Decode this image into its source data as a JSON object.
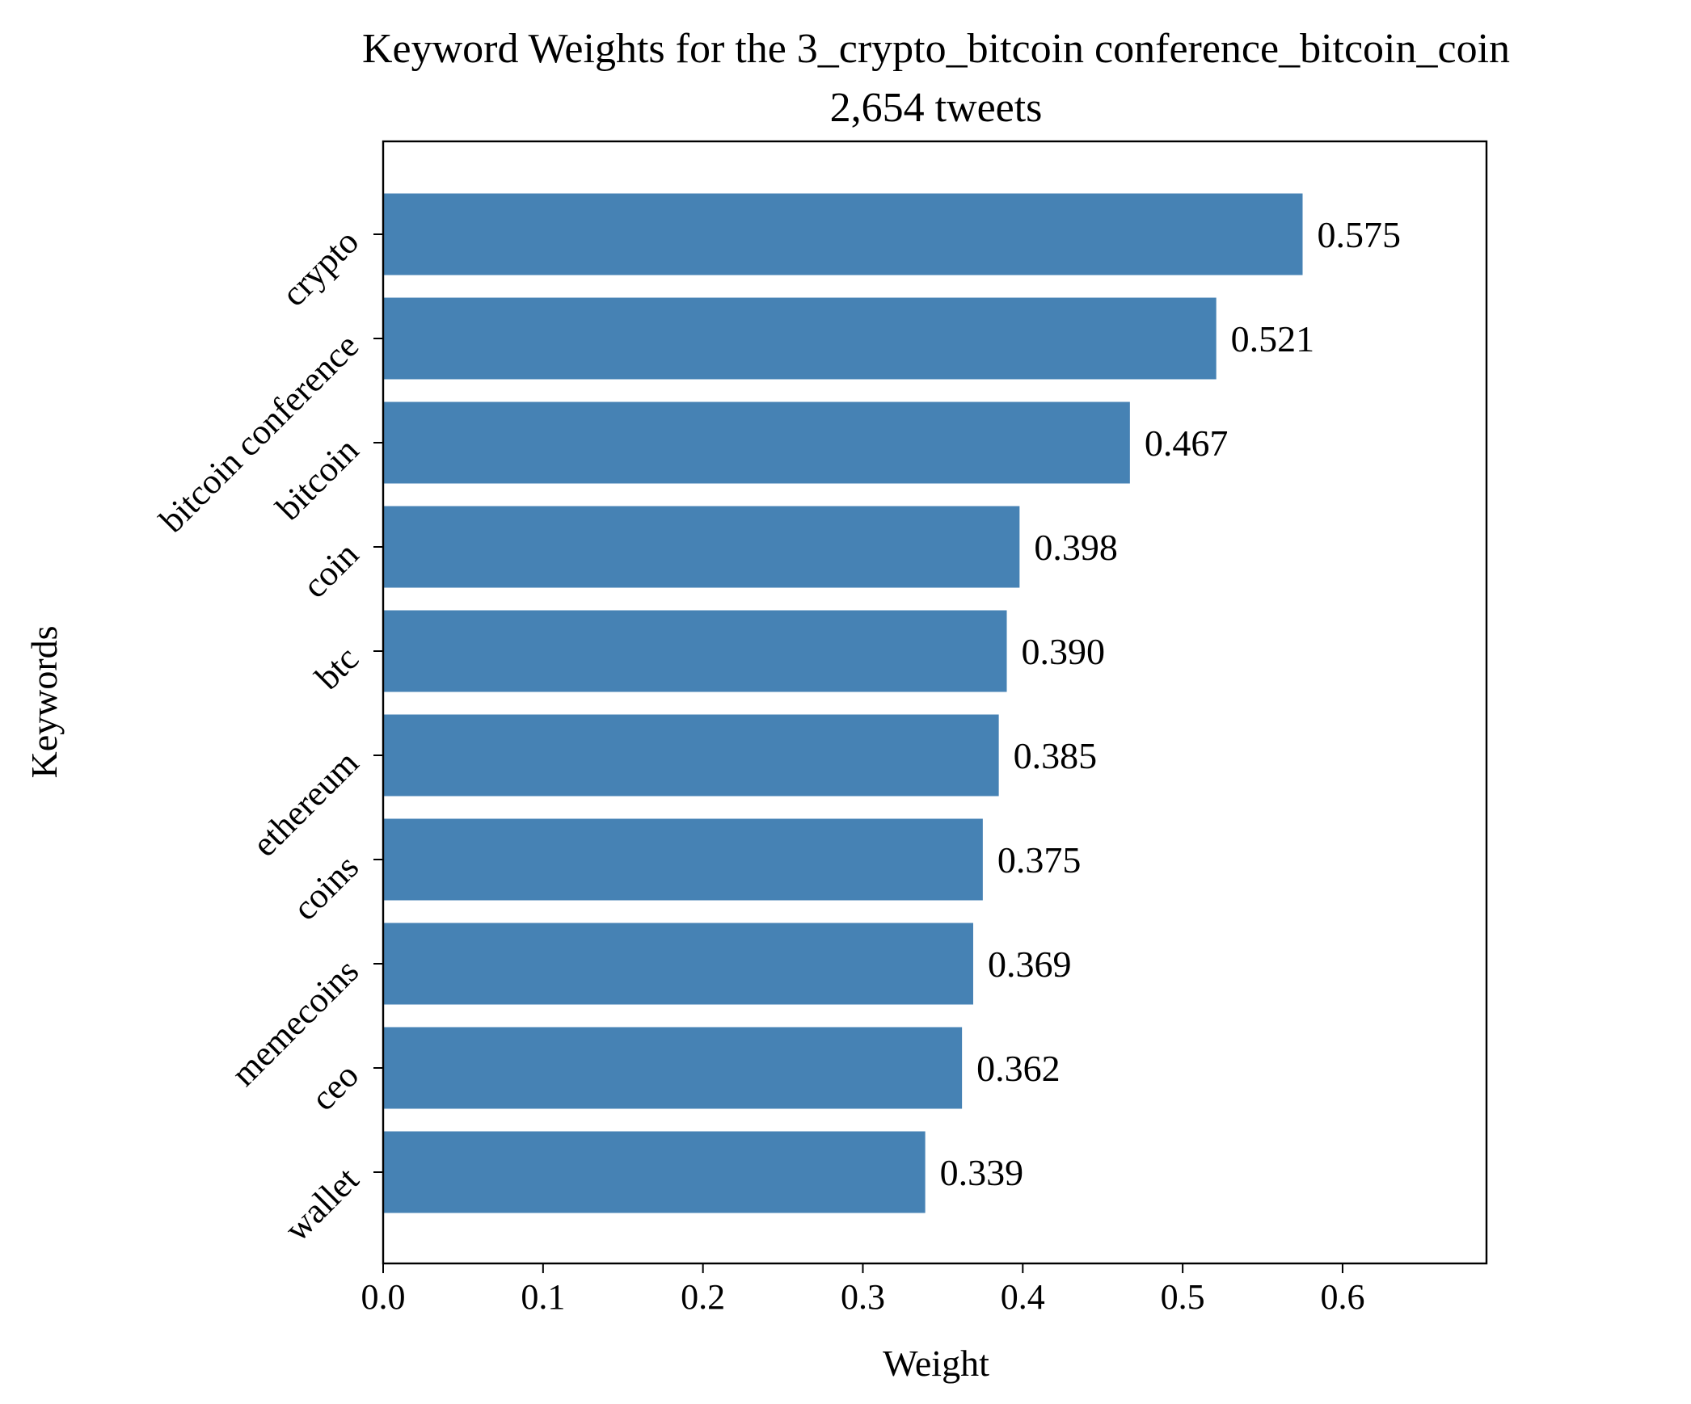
{
  "chart_data": {
    "type": "bar",
    "orientation": "horizontal",
    "title": "Keyword Weights for the 3_crypto_bitcoin conference_bitcoin_coin",
    "subtitle": "2,654 tweets",
    "xlabel": "Weight",
    "ylabel": "Keywords",
    "xlim": [
      0,
      0.69
    ],
    "xticks": [
      "0.0",
      "0.1",
      "0.2",
      "0.3",
      "0.4",
      "0.5",
      "0.6"
    ],
    "categories": [
      "crypto",
      "bitcoin conference",
      "bitcoin",
      "coin",
      "btc",
      "ethereum",
      "coins",
      "memecoins",
      "ceo",
      "wallet"
    ],
    "values": [
      0.575,
      0.521,
      0.467,
      0.398,
      0.39,
      0.385,
      0.375,
      0.369,
      0.362,
      0.339
    ],
    "value_labels": [
      "0.575",
      "0.521",
      "0.467",
      "0.398",
      "0.390",
      "0.385",
      "0.375",
      "0.369",
      "0.362",
      "0.339"
    ],
    "bar_color": "#4682b4",
    "grid": false,
    "legend": "none"
  }
}
